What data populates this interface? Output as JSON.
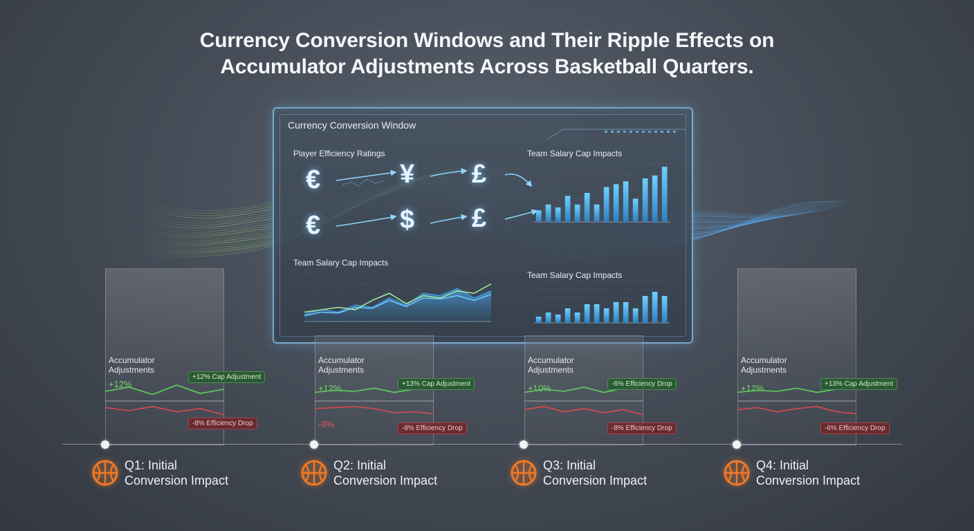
{
  "title": {
    "line1": "Currency Conversion Windows and Their Ripple Effects on",
    "line2": "Accumulator Adjustments Across Basketball Quarters."
  },
  "panel": {
    "title": "Currency Conversion Window",
    "ratings_label": "Player Efficiency Ratings",
    "cap_label_top": "Team Salary Cap Impacts",
    "cap_label_bottom_left": "Team Salary Cap Impacts",
    "cap_label_bottom_right": "Team Salary Cap Impacts",
    "currency_row1": [
      "€",
      "¥",
      "£"
    ],
    "currency_row2": [
      "€",
      "$",
      "£"
    ]
  },
  "chart_data": [
    {
      "type": "bar",
      "title": "Team Salary Cap Impacts",
      "values": [
        2,
        3,
        2.5,
        4.5,
        3,
        5,
        3,
        6,
        6.5,
        7,
        4,
        7.5,
        8,
        9.5
      ],
      "ylim": [
        0,
        10
      ]
    },
    {
      "type": "line",
      "title": "Team Salary Cap Impacts",
      "series": [
        {
          "values": [
            1.5,
            2.5,
            2,
            3.5,
            3,
            5,
            3.5,
            6,
            5.5,
            7,
            5,
            6.5
          ]
        },
        {
          "values": [
            1.2,
            2,
            1.8,
            3,
            2.8,
            4.5,
            3.2,
            5,
            4.8,
            5.5,
            4.5,
            5.8
          ]
        },
        {
          "values": [
            2,
            2.5,
            3,
            2.5,
            4.5,
            6,
            3.8,
            5.5,
            5,
            6.5,
            6,
            8
          ]
        }
      ],
      "ylim": [
        0,
        10
      ]
    },
    {
      "type": "bar",
      "title": "Team Salary Cap Impacts",
      "values": [
        1.5,
        2.5,
        2,
        3.5,
        2.5,
        4.5,
        4.5,
        3.5,
        5,
        5,
        3.5,
        6.5,
        7.5,
        6.5
      ],
      "ylim": [
        0,
        10
      ]
    }
  ],
  "quarters": [
    {
      "accumulator": "Accumulator\nAdjustments",
      "pos_value": "+12%",
      "neg_value": "",
      "pos_badge": "+12% Cap Adjustment",
      "neg_badge": "-8% Efficiency Drop",
      "label_line1": "Q1: Initial",
      "label_line2": "Conversion Impact",
      "green": [
        0.4,
        0.2,
        0.55,
        0.1,
        0.5,
        0.3
      ],
      "red": [
        0.25,
        0.4,
        0.2,
        0.45,
        0.3,
        0.6
      ]
    },
    {
      "accumulator": "Accumulator\nAdjustments",
      "pos_value": "+12%",
      "neg_value": "-8%",
      "pos_badge": "+13% Cap Adjustment",
      "neg_badge": "-8% Efficiency Drop",
      "label_line1": "Q2: Initial",
      "label_line2": "Conversion Impact",
      "green": [
        0.45,
        0.35,
        0.4,
        0.25,
        0.45,
        0.3,
        0.15
      ],
      "red": [
        0.3,
        0.25,
        0.2,
        0.3,
        0.5,
        0.45,
        0.55
      ]
    },
    {
      "accumulator": "Accumulator\nAdjustments",
      "pos_value": "+10%",
      "neg_value": "",
      "pos_badge": "-6% Efficiency Drop",
      "neg_badge": "-8% Efficiency Drop",
      "label_line1": "Q3: Initial",
      "label_line2": "Conversion Impact",
      "green": [
        0.45,
        0.3,
        0.4,
        0.2,
        0.45,
        0.25,
        0.15
      ],
      "red": [
        0.35,
        0.2,
        0.45,
        0.3,
        0.5,
        0.35,
        0.6
      ]
    },
    {
      "accumulator": "Accumulator\nAdjustments",
      "pos_value": "+12%",
      "neg_value": "",
      "pos_badge": "+13% Cap Adjustment",
      "neg_badge": "-6% Efficiency Drop",
      "label_line1": "Q4: Initial",
      "label_line2": "Conversion Impact",
      "green": [
        0.45,
        0.35,
        0.4,
        0.25,
        0.45,
        0.3,
        0.15
      ],
      "red": [
        0.35,
        0.25,
        0.45,
        0.3,
        0.2,
        0.45,
        0.55
      ]
    }
  ],
  "colors": {
    "accent_blue": "#5cc0ff",
    "positive": "#5ed35a",
    "negative": "#e04a4e",
    "ball": "#f07a28"
  },
  "icons": {
    "quarter": "basketball-icon",
    "node": "timeline-node"
  }
}
